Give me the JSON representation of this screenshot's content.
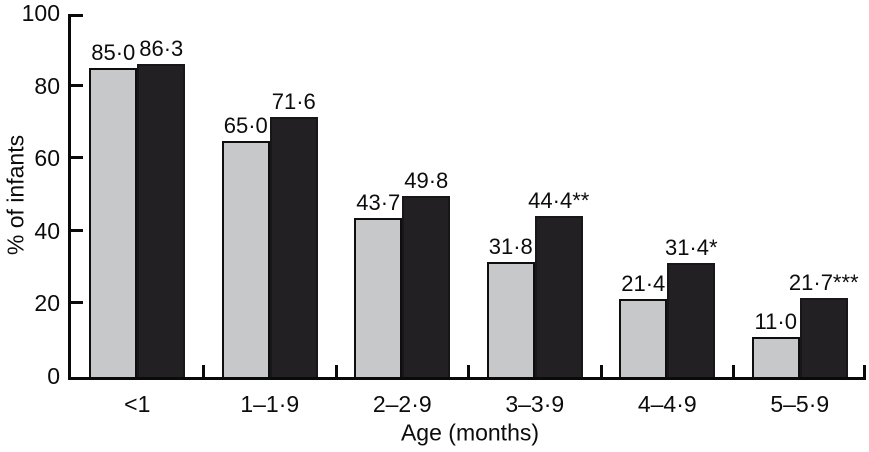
{
  "chart_data": {
    "type": "bar",
    "title": "",
    "xlabel": "Age (months)",
    "ylabel": "% of infants",
    "ylim": [
      0,
      100
    ],
    "yticks": [
      0,
      20,
      40,
      60,
      80,
      100
    ],
    "grid": false,
    "legend": "none",
    "background_color": "#ffffff",
    "categories": [
      "<1",
      "1–1·9",
      "2–2·9",
      "3–3·9",
      "4–4·9",
      "5–5·9"
    ],
    "series": [
      {
        "name": "gray",
        "color": "#c6c8c9",
        "values": [
          85.0,
          65.0,
          43.7,
          31.8,
          21.4,
          11.0
        ],
        "data_labels": [
          "85·0",
          "65·0",
          "43·7",
          "31·8",
          "21·4",
          "11·0"
        ]
      },
      {
        "name": "black",
        "color": "#232023",
        "values": [
          86.3,
          71.6,
          49.8,
          44.4,
          31.4,
          21.7
        ],
        "data_labels": [
          "86·3",
          "71·6",
          "49·8",
          "44·4**",
          "31·4*",
          "21·7***"
        ]
      }
    ]
  }
}
